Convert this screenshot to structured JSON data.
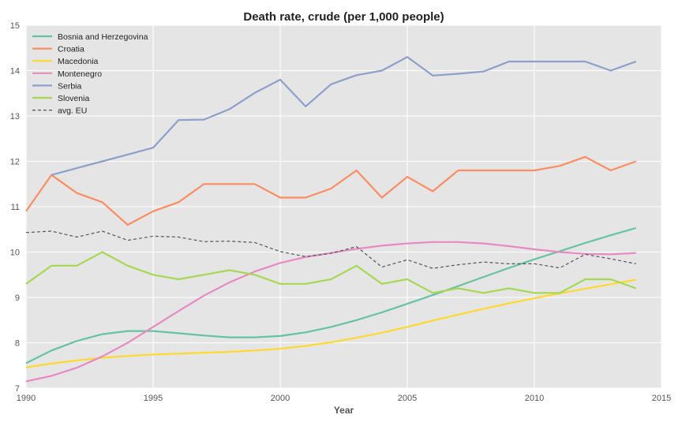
{
  "chart_data": {
    "type": "line",
    "title": "Death rate, crude (per 1,000 people)",
    "xlabel": "Year",
    "ylabel": "",
    "xlim": [
      1990,
      2015
    ],
    "ylim": [
      7,
      15
    ],
    "x_ticks": [
      "1990",
      "1995",
      "2000",
      "2005",
      "2010",
      "2015"
    ],
    "y_ticks": [
      "7",
      "8",
      "9",
      "10",
      "11",
      "12",
      "13",
      "14",
      "15"
    ],
    "grid": true,
    "legend_position": "top-left",
    "x": [
      1990,
      1991,
      1992,
      1993,
      1994,
      1995,
      1996,
      1997,
      1998,
      1999,
      2000,
      2001,
      2002,
      2003,
      2004,
      2005,
      2006,
      2007,
      2008,
      2009,
      2010,
      2011,
      2012,
      2013,
      2014
    ],
    "series": [
      {
        "name": "Bosnia and Herzegovina",
        "color": "#66c2a5",
        "dashed": false,
        "values": [
          7.55,
          7.83,
          8.04,
          8.19,
          8.26,
          8.26,
          8.21,
          8.16,
          8.12,
          8.12,
          8.15,
          8.23,
          8.35,
          8.5,
          8.67,
          8.86,
          9.05,
          9.25,
          9.45,
          9.65,
          9.84,
          10.02,
          10.2,
          10.37,
          10.53
        ]
      },
      {
        "name": "Croatia",
        "color": "#fc8d62",
        "dashed": false,
        "values": [
          10.9,
          11.7,
          11.3,
          11.1,
          10.6,
          10.9,
          11.1,
          11.5,
          11.5,
          11.5,
          11.2,
          11.2,
          11.4,
          11.8,
          11.2,
          11.66,
          11.34,
          11.8,
          11.8,
          11.8,
          11.8,
          11.9,
          12.1,
          11.8,
          12.0
        ]
      },
      {
        "name": "Macedonia",
        "color": "#ffd92f",
        "dashed": false,
        "values": [
          7.46,
          7.54,
          7.61,
          7.67,
          7.71,
          7.74,
          7.76,
          7.78,
          7.8,
          7.83,
          7.87,
          7.93,
          8.01,
          8.11,
          8.22,
          8.35,
          8.49,
          8.62,
          8.75,
          8.87,
          8.98,
          9.09,
          9.19,
          9.29,
          9.39
        ]
      },
      {
        "name": "Montenegro",
        "color": "#e78ac3",
        "dashed": false,
        "values": [
          7.15,
          7.27,
          7.45,
          7.7,
          8.0,
          8.35,
          8.7,
          9.04,
          9.33,
          9.57,
          9.76,
          9.89,
          9.98,
          10.07,
          10.14,
          10.19,
          10.22,
          10.22,
          10.19,
          10.13,
          10.06,
          10.0,
          9.96,
          9.95,
          9.98
        ]
      },
      {
        "name": "Serbia",
        "color": "#8da0cb",
        "dashed": false,
        "values": [
          null,
          11.7,
          11.85,
          12.0,
          12.15,
          12.3,
          12.91,
          12.92,
          13.15,
          13.51,
          13.8,
          13.21,
          13.7,
          13.9,
          14.0,
          14.3,
          13.89,
          13.93,
          13.98,
          14.2,
          14.2,
          14.2,
          14.2,
          14.0,
          14.2
        ]
      },
      {
        "name": "Slovenia",
        "color": "#a6d854",
        "dashed": false,
        "values": [
          9.3,
          9.7,
          9.7,
          10.0,
          9.7,
          9.5,
          9.4,
          9.5,
          9.6,
          9.5,
          9.3,
          9.3,
          9.4,
          9.7,
          9.3,
          9.4,
          9.1,
          9.2,
          9.1,
          9.2,
          9.1,
          9.1,
          9.4,
          9.4,
          9.2
        ]
      },
      {
        "name": "avg. EU",
        "color": "#555555",
        "dashed": true,
        "values": [
          10.43,
          10.46,
          10.33,
          10.46,
          10.26,
          10.35,
          10.33,
          10.23,
          10.24,
          10.21,
          10.01,
          9.9,
          9.97,
          10.12,
          9.67,
          9.83,
          9.64,
          9.72,
          9.78,
          9.74,
          9.74,
          9.65,
          9.95,
          9.85,
          9.74
        ]
      }
    ]
  }
}
